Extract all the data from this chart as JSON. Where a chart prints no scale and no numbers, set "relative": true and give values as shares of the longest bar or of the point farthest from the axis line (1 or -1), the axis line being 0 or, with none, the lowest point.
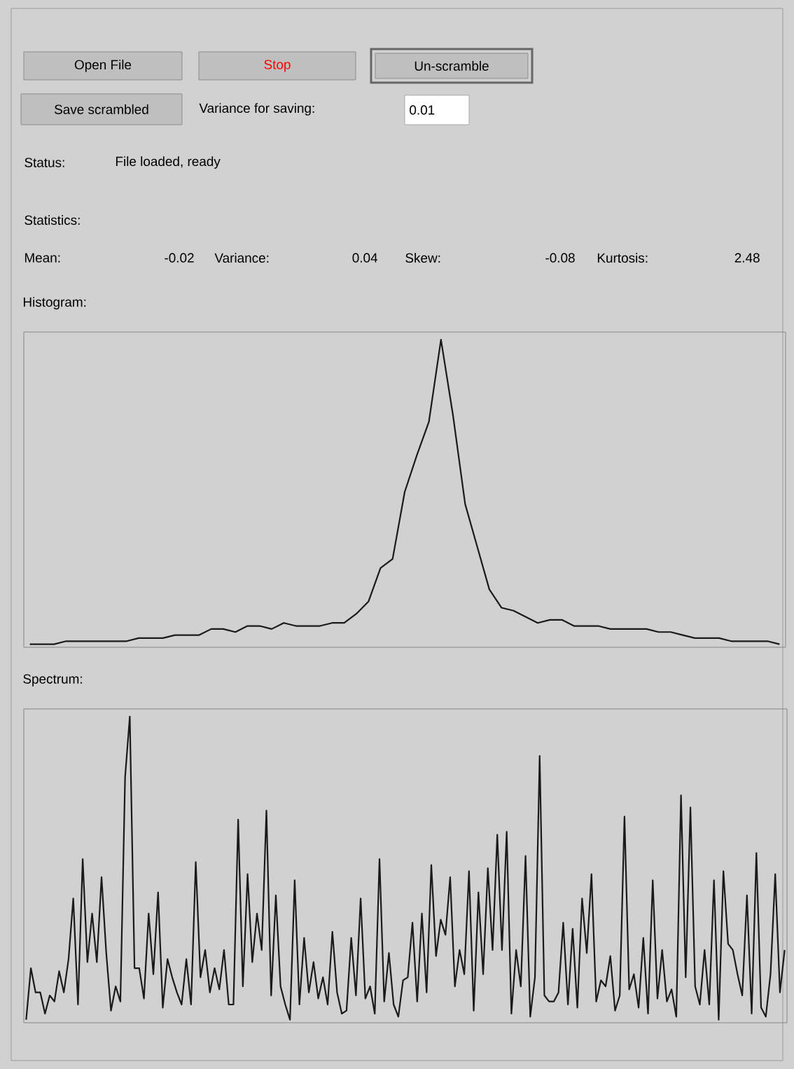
{
  "chart_data": [
    {
      "type": "other",
      "annotations": [
        "Open File",
        "Stop",
        "Un-scramble",
        "Save scrambled",
        "Variance for saving:",
        "0.01",
        "Status:",
        "File loaded, ready",
        "Statistics:",
        "Mean:",
        "-0.02",
        "Variance:",
        "0.04",
        "Skew:",
        "-0.08",
        "Kurtosis:",
        "2.48"
      ]
    },
    {
      "type": "line",
      "title": "Histogram:",
      "relative": true,
      "marker": "none",
      "color": "#1a1a1a",
      "categories": [
        null,
        null,
        null,
        null,
        null,
        null,
        null,
        null,
        null,
        null,
        null,
        null,
        null,
        null,
        null,
        null,
        null,
        null,
        null,
        null,
        null,
        null,
        null,
        null,
        null,
        null,
        null,
        null,
        null,
        null,
        null,
        null,
        null,
        null,
        null,
        null,
        null,
        null,
        null,
        null,
        null,
        null,
        null,
        null,
        null,
        null,
        null,
        null,
        null,
        null,
        null,
        null,
        null,
        null,
        null,
        null,
        null,
        null,
        null,
        null,
        null,
        null,
        null
      ],
      "values": [
        0.0,
        0.0,
        0.0,
        0.01,
        0.01,
        0.01,
        0.01,
        0.01,
        0.01,
        0.02,
        0.02,
        0.02,
        0.03,
        0.03,
        0.03,
        0.05,
        0.05,
        0.04,
        0.06,
        0.06,
        0.05,
        0.07,
        0.06,
        0.06,
        0.06,
        0.07,
        0.07,
        0.1,
        0.14,
        0.25,
        0.28,
        0.5,
        0.62,
        0.73,
        1.0,
        0.75,
        0.46,
        0.32,
        0.18,
        0.12,
        0.11,
        0.09,
        0.07,
        0.08,
        0.08,
        0.06,
        0.06,
        0.06,
        0.05,
        0.05,
        0.05,
        0.05,
        0.04,
        0.04,
        0.03,
        0.02,
        0.02,
        0.02,
        0.01,
        0.01,
        0.01,
        0.01,
        0.0
      ]
    },
    {
      "type": "line",
      "title": "Spectrum:",
      "relative": true,
      "marker": "none",
      "color": "#1a1a1a",
      "categories": [
        null,
        null,
        null,
        null,
        null,
        null,
        null,
        null,
        null,
        null,
        null,
        null,
        null,
        null,
        null,
        null,
        null,
        null,
        null,
        null,
        null,
        null,
        null,
        null,
        null,
        null,
        null,
        null,
        null,
        null,
        null,
        null,
        null,
        null,
        null,
        null,
        null,
        null,
        null,
        null,
        null,
        null,
        null,
        null,
        null,
        null,
        null,
        null,
        null,
        null,
        null,
        null,
        null,
        null,
        null,
        null,
        null,
        null,
        null,
        null,
        null,
        null,
        null,
        null,
        null,
        null,
        null,
        null,
        null,
        null,
        null,
        null,
        null,
        null,
        null,
        null,
        null,
        null,
        null,
        null,
        null,
        null,
        null,
        null,
        null,
        null,
        null,
        null,
        null,
        null,
        null,
        null,
        null,
        null,
        null,
        null,
        null,
        null,
        null,
        null,
        null,
        null,
        null,
        null,
        null,
        null,
        null,
        null,
        null,
        null,
        null,
        null,
        null,
        null,
        null,
        null,
        null,
        null,
        null,
        null,
        null,
        null,
        null,
        null,
        null,
        null,
        null,
        null,
        null,
        null,
        null,
        null,
        null,
        null,
        null,
        null,
        null,
        null,
        null,
        null,
        null,
        null,
        null,
        null,
        null,
        null,
        null,
        null,
        null,
        null,
        null,
        null,
        null,
        null,
        null,
        null,
        null,
        null,
        null,
        null,
        null,
        null
      ],
      "values": [
        0.0,
        0.17,
        0.09,
        0.09,
        0.02,
        0.08,
        0.06,
        0.16,
        0.09,
        0.2,
        0.4,
        0.05,
        0.53,
        0.19,
        0.35,
        0.19,
        0.47,
        0.22,
        0.03,
        0.11,
        0.06,
        0.8,
        1.0,
        0.17,
        0.17,
        0.07,
        0.35,
        0.15,
        0.42,
        0.04,
        0.2,
        0.14,
        0.09,
        0.05,
        0.2,
        0.05,
        0.52,
        0.14,
        0.23,
        0.09,
        0.17,
        0.1,
        0.23,
        0.05,
        0.05,
        0.66,
        0.11,
        0.48,
        0.19,
        0.35,
        0.23,
        0.69,
        0.08,
        0.41,
        0.11,
        0.05,
        0.0,
        0.46,
        0.05,
        0.27,
        0.09,
        0.19,
        0.07,
        0.14,
        0.05,
        0.29,
        0.09,
        0.02,
        0.03,
        0.27,
        0.08,
        0.4,
        0.07,
        0.11,
        0.02,
        0.53,
        0.06,
        0.22,
        0.05,
        0.01,
        0.13,
        0.14,
        0.32,
        0.06,
        0.35,
        0.09,
        0.51,
        0.21,
        0.33,
        0.28,
        0.47,
        0.11,
        0.23,
        0.15,
        0.49,
        0.03,
        0.42,
        0.15,
        0.5,
        0.23,
        0.61,
        0.23,
        0.62,
        0.02,
        0.23,
        0.11,
        0.54,
        0.01,
        0.14,
        0.87,
        0.08,
        0.06,
        0.06,
        0.09,
        0.32,
        0.05,
        0.3,
        0.04,
        0.4,
        0.22,
        0.48,
        0.06,
        0.13,
        0.11,
        0.21,
        0.03,
        0.08,
        0.67,
        0.1,
        0.15,
        0.04,
        0.27,
        0.02,
        0.46,
        0.07,
        0.23,
        0.06,
        0.1,
        0.01,
        0.74,
        0.14,
        0.7,
        0.11,
        0.05,
        0.23,
        0.05,
        0.46,
        0.0,
        0.49,
        0.25,
        0.23,
        0.15,
        0.08,
        0.41,
        0.02,
        0.55,
        0.04,
        0.01,
        0.15,
        0.48,
        0.09,
        0.23
      ]
    }
  ]
}
